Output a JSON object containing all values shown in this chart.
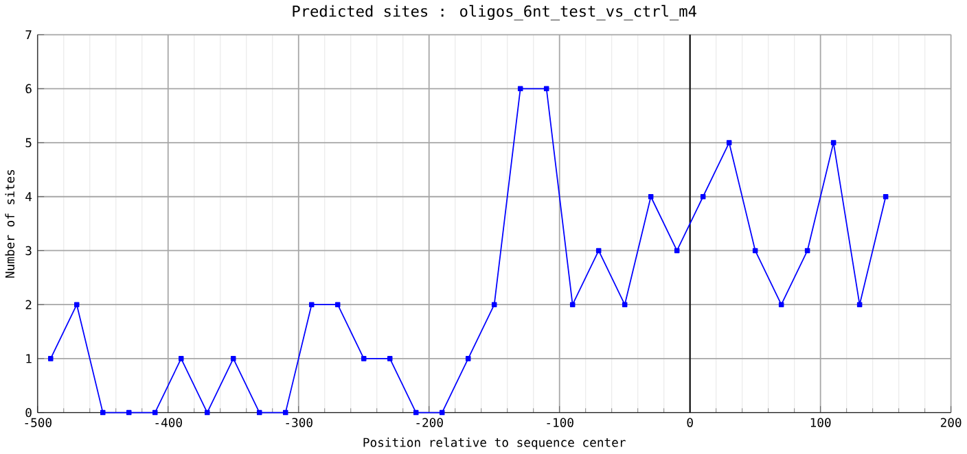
{
  "chart_data": {
    "type": "line",
    "title": "Predicted sites : oligos_6nt_test_vs_ctrl_m4",
    "xlabel": "Position relative to sequence center",
    "ylabel": "Number of sites",
    "x": [
      -490,
      -470,
      -450,
      -430,
      -410,
      -390,
      -370,
      -350,
      -330,
      -310,
      -290,
      -270,
      -250,
      -230,
      -210,
      -190,
      -170,
      -150,
      -130,
      -110,
      -90,
      -70,
      -50,
      -30,
      -10,
      10,
      30,
      50,
      70,
      90,
      110,
      130,
      150
    ],
    "series": [
      {
        "color": "#0000ff",
        "values": [
          1,
          2,
          0,
          0,
          0,
          1,
          0,
          1,
          0,
          0,
          2,
          2,
          1,
          1,
          0,
          0,
          1,
          2,
          6,
          6,
          2,
          3,
          2,
          4,
          3,
          4,
          5,
          3,
          2,
          3,
          5,
          2,
          4
        ]
      }
    ],
    "xlim": [
      -500,
      200
    ],
    "xticks": [
      -500,
      -400,
      -300,
      -200,
      -100,
      0,
      100,
      200
    ],
    "ylim": [
      0,
      7
    ],
    "yticks": [
      0,
      1,
      2,
      3,
      4,
      5,
      6,
      7
    ],
    "ref_lines": [
      {
        "axis": "x",
        "value": 0,
        "color": "#000000"
      }
    ],
    "grid": true,
    "marker": "square",
    "line_style": "solid"
  }
}
